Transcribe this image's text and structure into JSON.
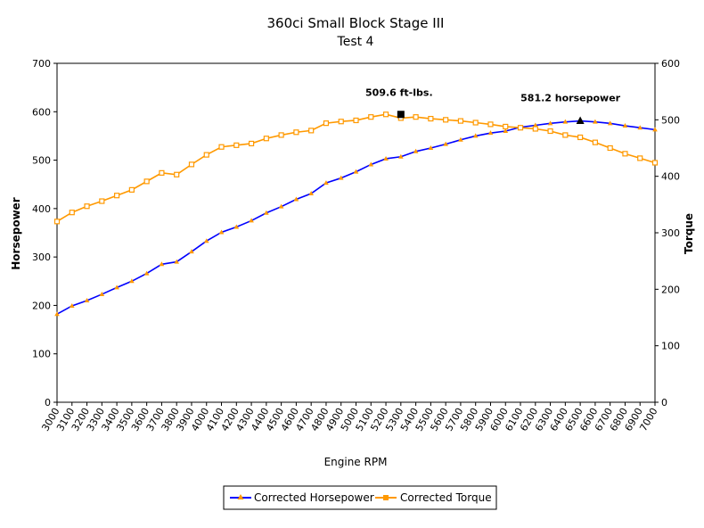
{
  "chart_data": {
    "type": "line",
    "title": "360ci Small Block Stage III",
    "subtitle": "Test 4",
    "xlabel": "Engine RPM",
    "ylabel": "Horsepower",
    "y2label": "Torque",
    "ylim": [
      0,
      700
    ],
    "y2lim": [
      0,
      600
    ],
    "yticks": [
      0,
      100,
      200,
      300,
      400,
      500,
      600,
      700
    ],
    "y2ticks": [
      0,
      100,
      200,
      300,
      400,
      500,
      600
    ],
    "x": [
      3000,
      3100,
      3200,
      3300,
      3400,
      3500,
      3600,
      3700,
      3800,
      3900,
      4000,
      4100,
      4200,
      4300,
      4400,
      4500,
      4600,
      4700,
      4800,
      4900,
      5000,
      5100,
      5200,
      5300,
      5400,
      5500,
      5600,
      5700,
      5800,
      5900,
      6000,
      6100,
      6200,
      6300,
      6400,
      6500,
      6600,
      6700,
      6800,
      6900,
      7000
    ],
    "series": [
      {
        "name": "Corrected Horsepower",
        "axis": "left",
        "color": "#0000ff",
        "marker_color": "#ff9900",
        "values": [
          182,
          199,
          210,
          223,
          237,
          250,
          266,
          285,
          290,
          311,
          333,
          351,
          362,
          375,
          391,
          404,
          419,
          431,
          453,
          463,
          476,
          491,
          503,
          507,
          518,
          525,
          533,
          542,
          550,
          556,
          560,
          568,
          572,
          576,
          579,
          581,
          579,
          576,
          571,
          567,
          563
        ]
      },
      {
        "name": "Corrected Torque",
        "axis": "right",
        "color": "#ff9900",
        "marker_color": "#ff9900",
        "values": [
          320,
          336,
          347,
          356,
          366,
          376,
          391,
          406,
          403,
          421,
          438,
          452,
          455,
          458,
          467,
          473,
          478,
          481,
          494,
          497,
          499,
          505,
          509.6,
          503,
          505,
          502,
          500,
          498,
          495,
          492,
          488,
          486,
          484,
          480,
          473,
          469,
          460,
          450,
          440,
          432,
          424
        ]
      }
    ],
    "annotations": [
      {
        "text": "509.6 ft-lbs.",
        "x": 5300,
        "y2": 509.6,
        "marker": "square"
      },
      {
        "text": "581.2 horsepower",
        "x": 6500,
        "y": 581.2,
        "marker": "triangle"
      }
    ],
    "legend": {
      "position": "bottom"
    },
    "grid": false
  }
}
